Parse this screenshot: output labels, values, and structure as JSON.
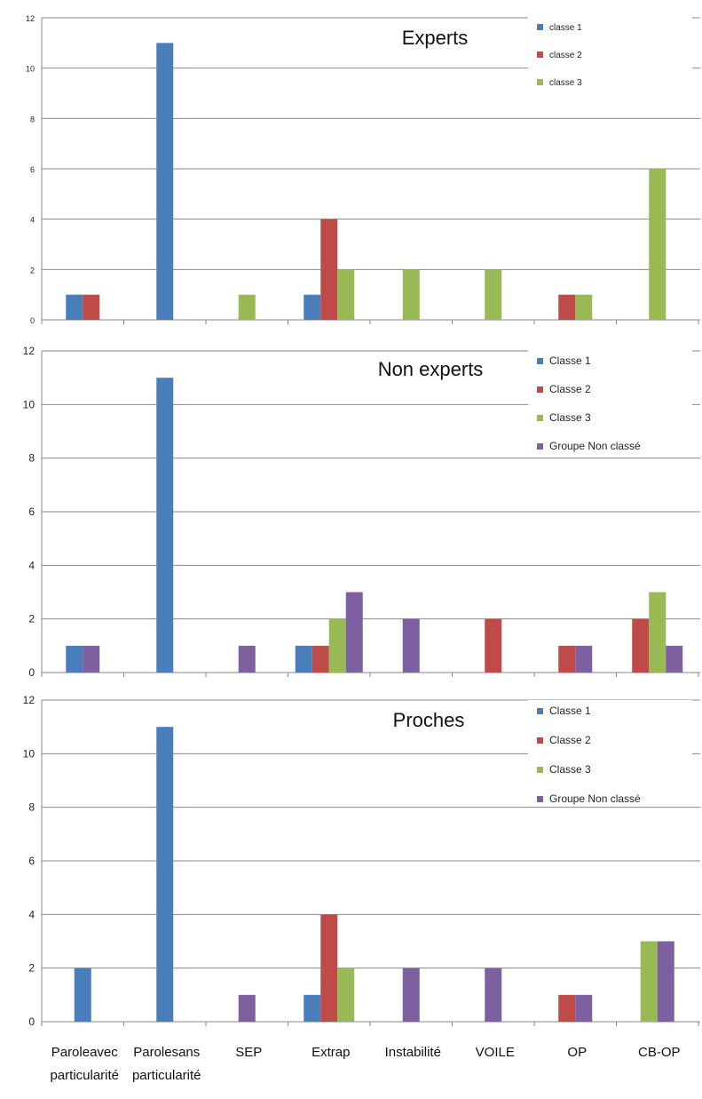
{
  "chart_data": [
    {
      "type": "bar",
      "title": "Experts",
      "categories": [
        "Parole avec particularité",
        "Parole sans particularité",
        "SEP",
        "Extrap",
        "Instabilité",
        "VOILE",
        "OP",
        "CB-OP"
      ],
      "ylim": [
        0,
        12
      ],
      "yticks": [
        0,
        2,
        4,
        6,
        8,
        10,
        12
      ],
      "grid": true,
      "legend_position": "top-right",
      "series": [
        {
          "name": "classe 1",
          "color": "#4a7ebb",
          "values": [
            1,
            11,
            0,
            1,
            0,
            0,
            0,
            0
          ]
        },
        {
          "name": "classe 2",
          "color": "#be4b48",
          "values": [
            1,
            0,
            0,
            4,
            0,
            0,
            1,
            0
          ]
        },
        {
          "name": "classe 3",
          "color": "#98b954",
          "values": [
            0,
            0,
            1,
            2,
            2,
            2,
            1,
            6
          ]
        }
      ]
    },
    {
      "type": "bar",
      "title": "Non experts",
      "categories": [
        "Parole avec particularité",
        "Parole sans particularité",
        "SEP",
        "Extrap",
        "Instabilité",
        "VOILE",
        "OP",
        "CB-OP"
      ],
      "ylim": [
        0,
        12
      ],
      "yticks": [
        0,
        2,
        4,
        6,
        8,
        10,
        12
      ],
      "grid": true,
      "legend_position": "top-right",
      "series": [
        {
          "name": "Classe 1",
          "color": "#4a7ebb",
          "values": [
            1,
            11,
            0,
            1,
            0,
            0,
            0,
            0
          ]
        },
        {
          "name": "Classe 2",
          "color": "#be4b48",
          "values": [
            0,
            0,
            0,
            1,
            0,
            2,
            1,
            2
          ]
        },
        {
          "name": "Classe 3",
          "color": "#98b954",
          "values": [
            0,
            0,
            0,
            2,
            0,
            0,
            0,
            3
          ]
        },
        {
          "name": "Groupe Non classé",
          "color": "#7d60a0",
          "values": [
            1,
            0,
            1,
            3,
            2,
            0,
            1,
            1
          ]
        }
      ]
    },
    {
      "type": "bar",
      "title": "Proches",
      "categories": [
        "Parole avec particularité",
        "Parole sans particularité",
        "SEP",
        "Extrap",
        "Instabilité",
        "VOILE",
        "OP",
        "CB-OP"
      ],
      "ylim": [
        0,
        12
      ],
      "yticks": [
        0,
        2,
        4,
        6,
        8,
        10,
        12
      ],
      "grid": true,
      "legend_position": "top-right",
      "x_tick_labels": [
        [
          "Paroleavec",
          "particularité"
        ],
        [
          "Parolesans",
          "particularité"
        ],
        [
          "SEP"
        ],
        [
          "Extrap"
        ],
        [
          "Instabilité"
        ],
        [
          "VOILE"
        ],
        [
          "OP"
        ],
        [
          "CB-OP"
        ]
      ],
      "series": [
        {
          "name": "Classe 1",
          "color": "#4a7ebb",
          "values": [
            2,
            11,
            0,
            1,
            0,
            0,
            0,
            0
          ]
        },
        {
          "name": "Classe 2",
          "color": "#be4b48",
          "values": [
            0,
            0,
            0,
            4,
            0,
            0,
            1,
            0
          ]
        },
        {
          "name": "Classe 3",
          "color": "#98b954",
          "values": [
            0,
            0,
            0,
            2,
            0,
            0,
            0,
            3
          ]
        },
        {
          "name": "Groupe Non classé",
          "color": "#7d60a0",
          "values": [
            0,
            0,
            1,
            0,
            2,
            2,
            1,
            3
          ]
        }
      ]
    }
  ]
}
